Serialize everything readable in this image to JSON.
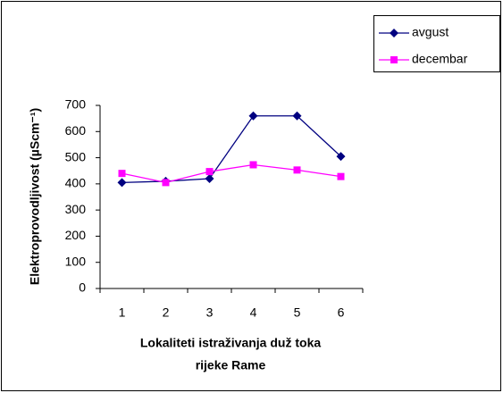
{
  "chart_data": {
    "type": "line",
    "ylabel": "Elektroprovodljivost (µScm⁻¹)",
    "xlabel": [
      "Lokaliteti istraživanja duž toka",
      "rijeke Rame"
    ],
    "categories": [
      1,
      2,
      3,
      4,
      5,
      6
    ],
    "series": [
      {
        "name": "avgust",
        "color": "#000080",
        "marker": "diamond",
        "values": [
          405,
          410,
          420,
          660,
          660,
          505
        ]
      },
      {
        "name": "decembar",
        "color": "#ff00ff",
        "marker": "square",
        "values": [
          440,
          405,
          447,
          473,
          453,
          428
        ]
      }
    ],
    "ylim": [
      0,
      700
    ],
    "yticks": [
      0,
      100,
      200,
      300,
      400,
      500,
      600,
      700
    ],
    "grid": false,
    "legend": "top-right"
  }
}
